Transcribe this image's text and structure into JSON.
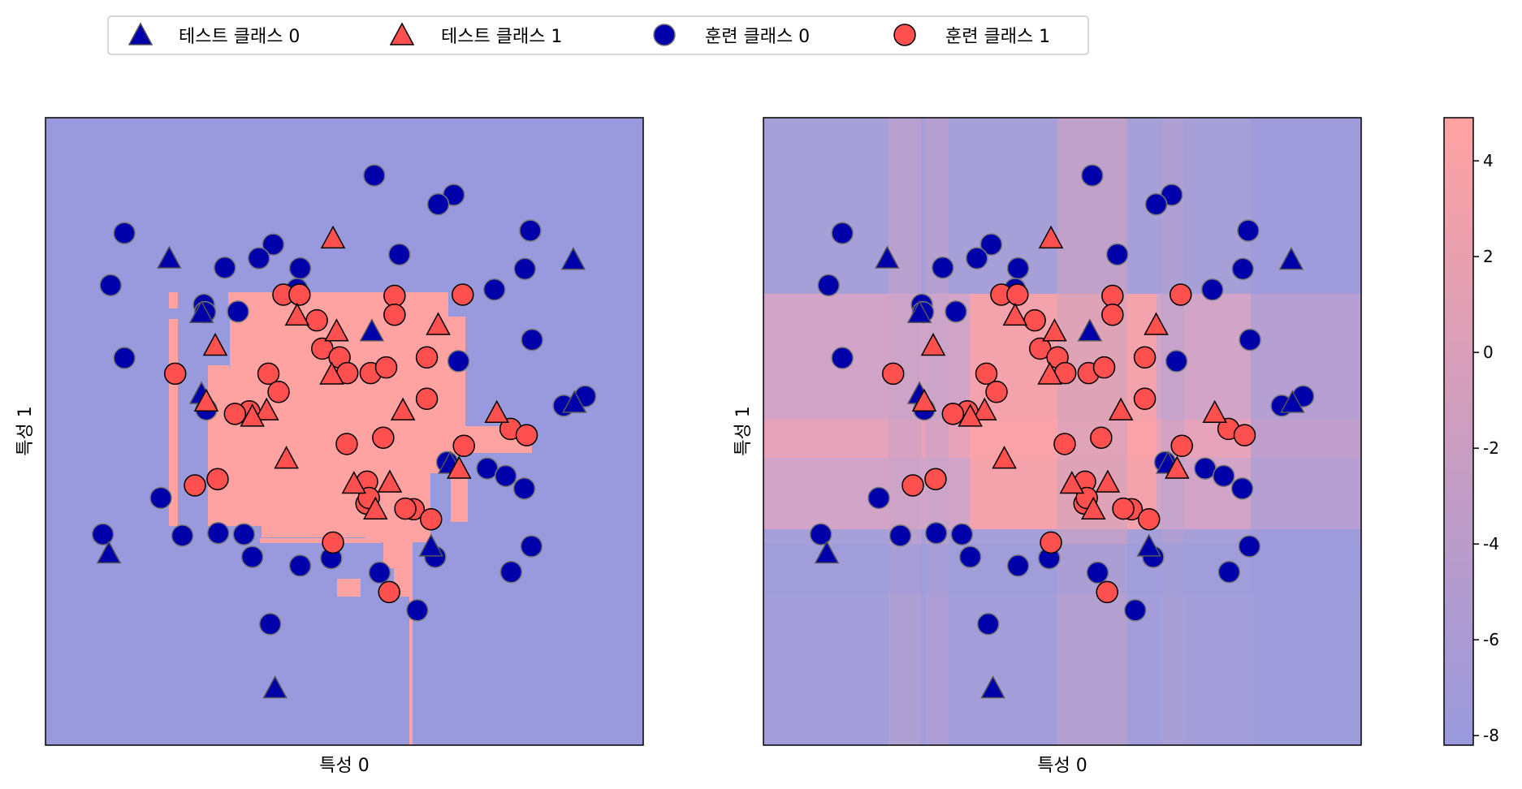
{
  "legend": {
    "placement": "top-left (above plots)",
    "items": [
      {
        "label": "테스트 클래스 0",
        "marker": "triangle",
        "color": "#0000aa"
      },
      {
        "label": "테스트 클래스 1",
        "marker": "triangle",
        "color": "#ff5050"
      },
      {
        "label": "훈련 클래스 0",
        "marker": "circle",
        "color": "#0000aa"
      },
      {
        "label": "훈련 클래스 1",
        "marker": "circle",
        "color": "#ff5050"
      }
    ]
  },
  "colors": {
    "class0": "#0000aa",
    "class1": "#ff5050",
    "region0": "#9999dd",
    "region1": "#ffa2a2",
    "edge_test": "#555555",
    "edge_train1": "#000000",
    "edge_train0": "#777777"
  },
  "chart_data": [
    {
      "type": "scatter",
      "panel": "left",
      "background": "decision regions (class 0 blue / class 1 red)",
      "xlabel": "특성 0",
      "ylabel": "특성 1",
      "xlim": [
        0,
        1
      ],
      "ylim": [
        0,
        1
      ],
      "ticks": "none",
      "series": [
        {
          "name": "훈련 클래스 0",
          "marker": "circle",
          "points": [
            [
              0.132,
              0.816
            ],
            [
              0.55,
              0.908
            ],
            [
              0.683,
              0.877
            ],
            [
              0.657,
              0.862
            ],
            [
              0.811,
              0.82
            ],
            [
              0.381,
              0.798
            ],
            [
              0.357,
              0.776
            ],
            [
              0.592,
              0.782
            ],
            [
              0.426,
              0.76
            ],
            [
              0.3,
              0.761
            ],
            [
              0.802,
              0.759
            ],
            [
              0.109,
              0.733
            ],
            [
              0.421,
              0.727
            ],
            [
              0.751,
              0.726
            ],
            [
              0.265,
              0.702
            ],
            [
              0.322,
              0.691
            ],
            [
              0.132,
              0.617
            ],
            [
              0.691,
              0.612
            ],
            [
              0.814,
              0.646
            ],
            [
              0.269,
              0.535
            ],
            [
              0.903,
              0.556
            ],
            [
              0.867,
              0.541
            ],
            [
              0.672,
              0.451
            ],
            [
              0.739,
              0.441
            ],
            [
              0.77,
              0.429
            ],
            [
              0.801,
              0.409
            ],
            [
              0.193,
              0.394
            ],
            [
              0.096,
              0.336
            ],
            [
              0.229,
              0.334
            ],
            [
              0.289,
              0.338
            ],
            [
              0.332,
              0.336
            ],
            [
              0.346,
              0.3
            ],
            [
              0.426,
              0.286
            ],
            [
              0.478,
              0.298
            ],
            [
              0.559,
              0.275
            ],
            [
              0.652,
              0.3
            ],
            [
              0.779,
              0.276
            ],
            [
              0.813,
              0.317
            ],
            [
              0.376,
              0.193
            ],
            [
              0.622,
              0.215
            ],
            [
              0.267,
              0.69
            ]
          ]
        },
        {
          "name": "훈련 클래스 1",
          "marker": "circle",
          "points": [
            [
              0.398,
              0.718
            ],
            [
              0.425,
              0.718
            ],
            [
              0.584,
              0.716
            ],
            [
              0.698,
              0.718
            ],
            [
              0.454,
              0.677
            ],
            [
              0.584,
              0.686
            ],
            [
              0.373,
              0.592
            ],
            [
              0.463,
              0.632
            ],
            [
              0.492,
              0.618
            ],
            [
              0.505,
              0.593
            ],
            [
              0.544,
              0.593
            ],
            [
              0.57,
              0.602
            ],
            [
              0.638,
              0.618
            ],
            [
              0.217,
              0.592
            ],
            [
              0.39,
              0.563
            ],
            [
              0.341,
              0.532
            ],
            [
              0.317,
              0.528
            ],
            [
              0.638,
              0.552
            ],
            [
              0.504,
              0.48
            ],
            [
              0.565,
              0.49
            ],
            [
              0.7,
              0.477
            ],
            [
              0.778,
              0.504
            ],
            [
              0.805,
              0.494
            ],
            [
              0.288,
              0.424
            ],
            [
              0.25,
              0.414
            ],
            [
              0.538,
              0.42
            ],
            [
              0.537,
              0.385
            ],
            [
              0.616,
              0.376
            ],
            [
              0.481,
              0.323
            ],
            [
              0.645,
              0.36
            ],
            [
              0.602,
              0.377
            ],
            [
              0.575,
              0.244
            ],
            [
              0.541,
              0.394
            ]
          ]
        },
        {
          "name": "테스트 클래스 0",
          "marker": "triangle",
          "points": [
            [
              0.207,
              0.776
            ],
            [
              0.883,
              0.774
            ],
            [
              0.261,
              0.689
            ],
            [
              0.546,
              0.66
            ],
            [
              0.885,
              0.546
            ],
            [
              0.261,
              0.56
            ],
            [
              0.677,
              0.449
            ],
            [
              0.106,
              0.306
            ],
            [
              0.645,
              0.317
            ],
            [
              0.384,
              0.091
            ]
          ]
        },
        {
          "name": "테스트 클래스 1",
          "marker": "triangle",
          "points": [
            [
              0.481,
              0.808
            ],
            [
              0.421,
              0.685
            ],
            [
              0.487,
              0.66
            ],
            [
              0.284,
              0.637
            ],
            [
              0.657,
              0.67
            ],
            [
              0.479,
              0.591
            ],
            [
              0.598,
              0.534
            ],
            [
              0.269,
              0.548
            ],
            [
              0.37,
              0.534
            ],
            [
              0.755,
              0.53
            ],
            [
              0.346,
              0.524
            ],
            [
              0.692,
              0.441
            ],
            [
              0.403,
              0.457
            ],
            [
              0.576,
              0.419
            ],
            [
              0.516,
              0.417
            ],
            [
              0.552,
              0.376
            ]
          ]
        }
      ]
    },
    {
      "type": "scatter",
      "panel": "right",
      "background": "decision function heatmap",
      "xlabel": "특성 0",
      "ylabel": "특성 1",
      "xlim": [
        0,
        1
      ],
      "ylim": [
        0,
        1
      ],
      "ticks": "none",
      "same_points_as": "left"
    },
    {
      "type": "heatmap",
      "panel": "colorbar",
      "orientation": "vertical",
      "range": [
        -8.2,
        4.9
      ],
      "tick_labels": [
        "4",
        "2",
        "0",
        "-2",
        "-4",
        "-6",
        "-8"
      ],
      "tick_values": [
        4,
        2,
        0,
        -2,
        -4,
        -6,
        -8
      ],
      "colormap": [
        "#9999dd",
        "#ffa2a2"
      ]
    }
  ]
}
